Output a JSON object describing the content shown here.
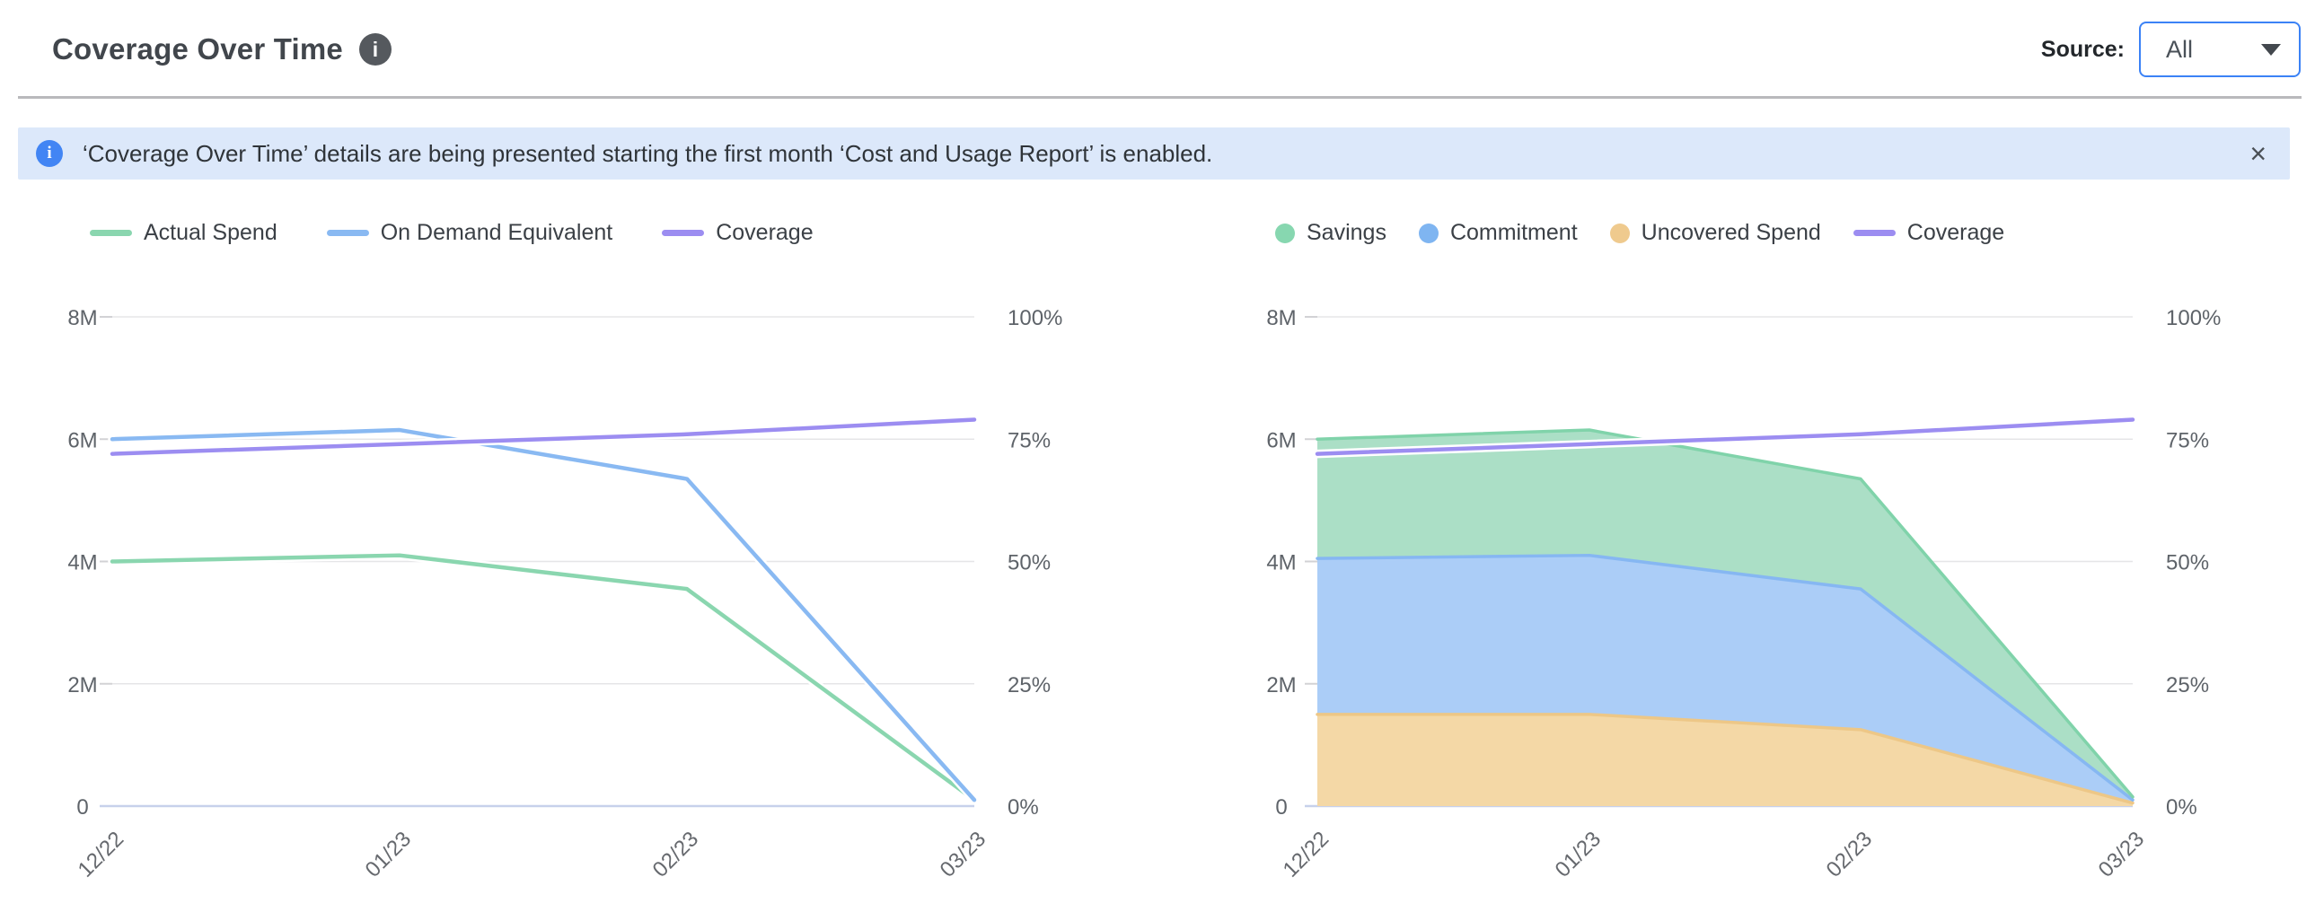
{
  "header": {
    "title": "Coverage Over Time",
    "source_label": "Source:",
    "source_value": "All"
  },
  "icons": {
    "title_info_glyph": "i",
    "banner_info_glyph": "i"
  },
  "banner": {
    "text": "‘Coverage Over Time’ details are being presented starting the first month ‘Cost and Usage Report’ is enabled.",
    "close_label": "×"
  },
  "colors": {
    "accent_blue": "#3B82F6",
    "banner_bg": "#DCE8FA",
    "gridline": "#E5E5E7",
    "axis_zero": "#C7D1EB",
    "actual_spend": "#8AD6AF",
    "on_demand_equivalent": "#89B9F2",
    "coverage": "#9C8DF1",
    "savings_fill": "#ABDFC6",
    "savings_edge": "#80D3AA",
    "commitment_fill": "#ABCDF7",
    "commitment_edge": "#86B7F2",
    "uncovered_fill": "#F4D8A6",
    "uncovered_edge": "#EDC787"
  },
  "chart_data": [
    {
      "type": "line",
      "title": "Spend vs On Demand Equivalent with Coverage",
      "categories": [
        "12/22",
        "01/23",
        "02/23",
        "03/23"
      ],
      "y_axis": {
        "labels": [
          "0",
          "2M",
          "4M",
          "6M",
          "8M"
        ],
        "max_millions": 8,
        "lim": [
          0,
          8000000
        ]
      },
      "y2_axis": {
        "labels": [
          "0%",
          "25%",
          "50%",
          "75%",
          "100%"
        ],
        "max_percent": 100,
        "lim": [
          0,
          100
        ]
      },
      "grid": "horizontal",
      "legend_position": "top-left",
      "series": [
        {
          "name": "Actual Spend",
          "kind": "line",
          "axis": "millions",
          "color": "#8AD6AF",
          "values": [
            4.0,
            4.1,
            3.55,
            0.1
          ]
        },
        {
          "name": "On Demand Equivalent",
          "kind": "line",
          "axis": "millions",
          "color": "#89B9F2",
          "values": [
            6.0,
            6.15,
            5.35,
            0.1
          ]
        },
        {
          "name": "Coverage",
          "kind": "line",
          "axis": "percent",
          "color": "#9C8DF1",
          "values": [
            72,
            74,
            76,
            79
          ]
        }
      ],
      "legend": [
        {
          "label": "Actual Spend",
          "color": "#8AD6AF",
          "shape": "dash"
        },
        {
          "label": "On Demand Equivalent",
          "color": "#89B9F2",
          "shape": "dash"
        },
        {
          "label": "Coverage",
          "color": "#9C8DF1",
          "shape": "dash"
        }
      ]
    },
    {
      "type": "area",
      "title": "Savings, Commitment and Uncovered Spend with Coverage",
      "categories": [
        "12/22",
        "01/23",
        "02/23",
        "03/23"
      ],
      "y_axis": {
        "labels": [
          "0",
          "2M",
          "4M",
          "6M",
          "8M"
        ],
        "max_millions": 8,
        "lim": [
          0,
          8000000
        ]
      },
      "y2_axis": {
        "labels": [
          "0%",
          "25%",
          "50%",
          "75%",
          "100%"
        ],
        "max_percent": 100,
        "lim": [
          0,
          100
        ]
      },
      "grid": "horizontal",
      "legend_position": "top-left",
      "stacked": true,
      "series": [
        {
          "name": "Uncovered Spend",
          "kind": "area",
          "axis": "millions",
          "color": "#EDC787",
          "fill": "#F4D8A6",
          "values": [
            1.5,
            1.5,
            1.25,
            0.05
          ]
        },
        {
          "name": "Commitment",
          "kind": "area",
          "axis": "millions",
          "color": "#86B7F2",
          "fill": "#ABCDF7",
          "values": [
            2.55,
            2.6,
            2.3,
            0.05
          ]
        },
        {
          "name": "Savings",
          "kind": "area",
          "axis": "millions",
          "color": "#80D3AA",
          "fill": "#ABDFC6",
          "values": [
            1.95,
            2.05,
            1.8,
            0.05
          ]
        },
        {
          "name": "Coverage",
          "kind": "line",
          "axis": "percent",
          "color": "#9C8DF1",
          "values": [
            72,
            74,
            76,
            79
          ]
        }
      ],
      "legend": [
        {
          "label": "Savings",
          "color": "#87D7B0",
          "shape": "dot"
        },
        {
          "label": "Commitment",
          "color": "#7FB5F1",
          "shape": "dot"
        },
        {
          "label": "Uncovered Spend",
          "color": "#EFCA8E",
          "shape": "dot"
        },
        {
          "label": "Coverage",
          "color": "#9C8DF1",
          "shape": "dash"
        }
      ]
    }
  ]
}
